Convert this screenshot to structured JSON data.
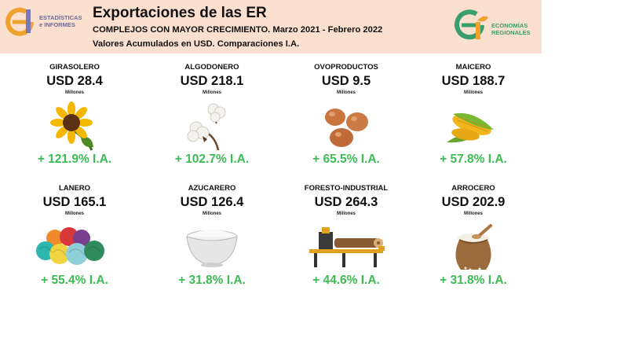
{
  "header": {
    "title": "Exportaciones de las ER",
    "subtitle_1": "COMPLEJOS CON MAYOR CRECIMIENTO. Marzo 2021 - Febrero 2022",
    "subtitle_2": "Valores Acumulados en USD. Comparaciones I.A.",
    "logo_left": {
      "line1": "ESTADÍSTICAS",
      "line2": "e INFORMES"
    },
    "logo_right": {
      "line1": "ECONOMÍAS",
      "line2": "REGIONALES"
    }
  },
  "colors": {
    "header_bg": "#fbe0cf",
    "growth_green": "#3dbb55",
    "logo_orange": "#f0a22e",
    "logo_green": "#3aa06b"
  },
  "complejos": [
    {
      "name": "GIRASOLERO",
      "value": "USD 28.4",
      "unit": "Millones",
      "growth": "+ 121.9% I.A.",
      "icon": "sunflower-icon"
    },
    {
      "name": "ALGODONERO",
      "value": "USD 218.1",
      "unit": "Millones",
      "growth": "+ 102.7% I.A.",
      "icon": "cotton-icon"
    },
    {
      "name": "OVOPRODUCTOS",
      "value": "USD 9.5",
      "unit": "Millones",
      "growth": "+ 65.5% I.A.",
      "icon": "eggs-icon"
    },
    {
      "name": "MAICERO",
      "value": "USD 188.7",
      "unit": "Millones",
      "growth": "+ 57.8% I.A.",
      "icon": "corn-icon"
    },
    {
      "name": "LANERO",
      "value": "USD 165.1",
      "unit": "Millones",
      "growth": "+ 55.4% I.A.",
      "icon": "yarn-icon"
    },
    {
      "name": "AZUCARERO",
      "value": "USD 126.4",
      "unit": "Millones",
      "growth": "+ 31.8% I.A.",
      "icon": "sugar-bowl-icon"
    },
    {
      "name": "FORESTO-INDUSTRIAL",
      "value": "USD 264.3",
      "unit": "Millones",
      "growth": "+ 44.6% I.A.",
      "icon": "sawmill-icon"
    },
    {
      "name": "ARROCERO",
      "value": "USD 202.9",
      "unit": "Millones",
      "growth": "+ 31.8% I.A.",
      "icon": "rice-sack-icon"
    }
  ]
}
